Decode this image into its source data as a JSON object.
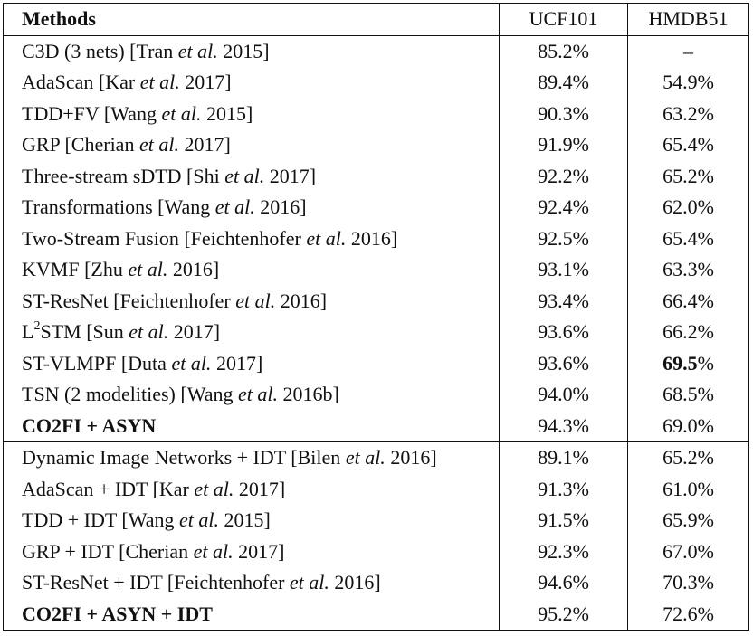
{
  "header": {
    "methods": "Methods",
    "ucf101": "UCF101",
    "hmdb51": "HMDB51"
  },
  "rows": [
    {
      "name_pre": "C3D (3 nets) [Tran ",
      "etal": "et al.",
      "name_post": " 2015]",
      "ucf": "85.2%",
      "hmdb": "–"
    },
    {
      "name_pre": "AdaScan [Kar ",
      "etal": "et al.",
      "name_post": " 2017]",
      "ucf": "89.4%",
      "hmdb": "54.9%"
    },
    {
      "name_pre": "TDD+FV [Wang ",
      "etal": "et al.",
      "name_post": " 2015]",
      "ucf": "90.3%",
      "hmdb": "63.2%"
    },
    {
      "name_pre": "GRP [Cherian ",
      "etal": "et al.",
      "name_post": " 2017]",
      "ucf": "91.9%",
      "hmdb": "65.4%"
    },
    {
      "name_pre": "Three-stream sDTD [Shi ",
      "etal": "et al.",
      "name_post": " 2017]",
      "ucf": "92.2%",
      "hmdb": "65.2%"
    },
    {
      "name_pre": "Transformations [Wang ",
      "etal": "et al.",
      "name_post": " 2016]",
      "ucf": "92.4%",
      "hmdb": "62.0%"
    },
    {
      "name_pre": "Two-Stream Fusion [Feichtenhofer ",
      "etal": "et al.",
      "name_post": " 2016]",
      "ucf": "92.5%",
      "hmdb": "65.4%"
    },
    {
      "name_pre": "KVMF [Zhu ",
      "etal": "et al.",
      "name_post": " 2016]",
      "ucf": "93.1%",
      "hmdb": "63.3%"
    },
    {
      "name_pre": "ST-ResNet [Feichtenhofer ",
      "etal": "et al.",
      "name_post": " 2016]",
      "ucf": "93.4%",
      "hmdb": "66.4%"
    },
    {
      "name_pre_l": "L",
      "sup": "2",
      "name_pre": "STM [Sun ",
      "etal": "et al.",
      "name_post": " 2017]",
      "ucf": "93.6%",
      "hmdb": "66.2%"
    },
    {
      "name_pre": "ST-VLMPF [Duta ",
      "etal": "et al.",
      "name_post": " 2017]",
      "ucf": "93.6%",
      "hmdb_bold": "69.5",
      "hmdb_rest": "%"
    },
    {
      "name_pre": "TSN (2 modelities) [Wang ",
      "etal": "et al.",
      "name_post": " 2016b]",
      "ucf": "94.0%",
      "hmdb": "68.5%"
    },
    {
      "name_bold": "CO2FI + ASYN",
      "ucf_bold": "94.3%",
      "hmdb": "69.0%"
    },
    {
      "name_pre": "Dynamic Image Networks + IDT [Bilen ",
      "etal": "et al.",
      "name_post": " 2016]",
      "ucf": "89.1%",
      "hmdb": "65.2%"
    },
    {
      "name_pre": "AdaScan + IDT [Kar ",
      "etal": "et al.",
      "name_post": " 2017]",
      "ucf": "91.3%",
      "hmdb": "61.0%"
    },
    {
      "name_pre": "TDD + IDT [Wang ",
      "etal": "et al.",
      "name_post": " 2015]",
      "ucf": "91.5%",
      "hmdb": "65.9%"
    },
    {
      "name_pre": "GRP + IDT [Cherian ",
      "etal": "et al.",
      "name_post": " 2017]",
      "ucf": "92.3%",
      "hmdb": "67.0%"
    },
    {
      "name_pre": "ST-ResNet + IDT [Feichtenhofer ",
      "etal": "et al.",
      "name_post": " 2016]",
      "ucf": "94.6%",
      "hmdb": "70.3%"
    },
    {
      "name_bold": "CO2FI + ASYN + IDT",
      "ucf_bold": "95.2%",
      "hmdb_bold_full": "72.6%"
    }
  ]
}
